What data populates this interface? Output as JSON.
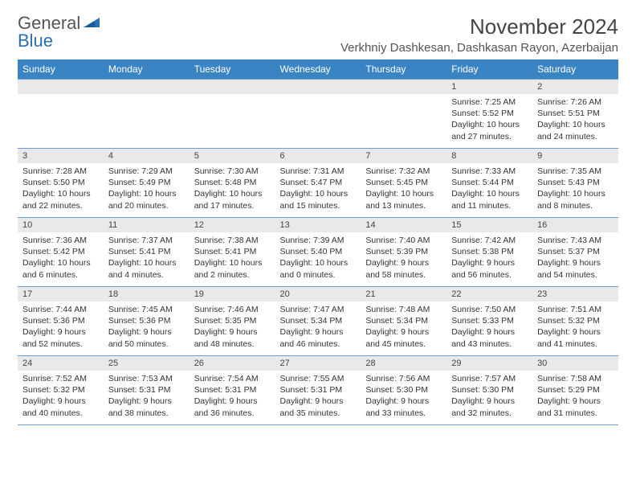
{
  "logo": {
    "text1": "General",
    "text2": "Blue"
  },
  "title": "November 2024",
  "location": "Verkhniy Dashkesan, Dashkasan Rayon, Azerbaijan",
  "colors": {
    "header_bg": "#3b84c4",
    "header_text": "#ffffff",
    "daynum_bg": "#e9e9e9",
    "border": "#6a9fd0",
    "logo_blue": "#2a6fb5",
    "title_color": "#444444",
    "body_text": "#333333"
  },
  "weekdays": [
    "Sunday",
    "Monday",
    "Tuesday",
    "Wednesday",
    "Thursday",
    "Friday",
    "Saturday"
  ],
  "weeks": [
    [
      null,
      null,
      null,
      null,
      null,
      {
        "n": "1",
        "sunrise": "7:25 AM",
        "sunset": "5:52 PM",
        "day_l1": "Daylight: 10 hours",
        "day_l2": "and 27 minutes."
      },
      {
        "n": "2",
        "sunrise": "7:26 AM",
        "sunset": "5:51 PM",
        "day_l1": "Daylight: 10 hours",
        "day_l2": "and 24 minutes."
      }
    ],
    [
      {
        "n": "3",
        "sunrise": "7:28 AM",
        "sunset": "5:50 PM",
        "day_l1": "Daylight: 10 hours",
        "day_l2": "and 22 minutes."
      },
      {
        "n": "4",
        "sunrise": "7:29 AM",
        "sunset": "5:49 PM",
        "day_l1": "Daylight: 10 hours",
        "day_l2": "and 20 minutes."
      },
      {
        "n": "5",
        "sunrise": "7:30 AM",
        "sunset": "5:48 PM",
        "day_l1": "Daylight: 10 hours",
        "day_l2": "and 17 minutes."
      },
      {
        "n": "6",
        "sunrise": "7:31 AM",
        "sunset": "5:47 PM",
        "day_l1": "Daylight: 10 hours",
        "day_l2": "and 15 minutes."
      },
      {
        "n": "7",
        "sunrise": "7:32 AM",
        "sunset": "5:45 PM",
        "day_l1": "Daylight: 10 hours",
        "day_l2": "and 13 minutes."
      },
      {
        "n": "8",
        "sunrise": "7:33 AM",
        "sunset": "5:44 PM",
        "day_l1": "Daylight: 10 hours",
        "day_l2": "and 11 minutes."
      },
      {
        "n": "9",
        "sunrise": "7:35 AM",
        "sunset": "5:43 PM",
        "day_l1": "Daylight: 10 hours",
        "day_l2": "and 8 minutes."
      }
    ],
    [
      {
        "n": "10",
        "sunrise": "7:36 AM",
        "sunset": "5:42 PM",
        "day_l1": "Daylight: 10 hours",
        "day_l2": "and 6 minutes."
      },
      {
        "n": "11",
        "sunrise": "7:37 AM",
        "sunset": "5:41 PM",
        "day_l1": "Daylight: 10 hours",
        "day_l2": "and 4 minutes."
      },
      {
        "n": "12",
        "sunrise": "7:38 AM",
        "sunset": "5:41 PM",
        "day_l1": "Daylight: 10 hours",
        "day_l2": "and 2 minutes."
      },
      {
        "n": "13",
        "sunrise": "7:39 AM",
        "sunset": "5:40 PM",
        "day_l1": "Daylight: 10 hours",
        "day_l2": "and 0 minutes."
      },
      {
        "n": "14",
        "sunrise": "7:40 AM",
        "sunset": "5:39 PM",
        "day_l1": "Daylight: 9 hours",
        "day_l2": "and 58 minutes."
      },
      {
        "n": "15",
        "sunrise": "7:42 AM",
        "sunset": "5:38 PM",
        "day_l1": "Daylight: 9 hours",
        "day_l2": "and 56 minutes."
      },
      {
        "n": "16",
        "sunrise": "7:43 AM",
        "sunset": "5:37 PM",
        "day_l1": "Daylight: 9 hours",
        "day_l2": "and 54 minutes."
      }
    ],
    [
      {
        "n": "17",
        "sunrise": "7:44 AM",
        "sunset": "5:36 PM",
        "day_l1": "Daylight: 9 hours",
        "day_l2": "and 52 minutes."
      },
      {
        "n": "18",
        "sunrise": "7:45 AM",
        "sunset": "5:36 PM",
        "day_l1": "Daylight: 9 hours",
        "day_l2": "and 50 minutes."
      },
      {
        "n": "19",
        "sunrise": "7:46 AM",
        "sunset": "5:35 PM",
        "day_l1": "Daylight: 9 hours",
        "day_l2": "and 48 minutes."
      },
      {
        "n": "20",
        "sunrise": "7:47 AM",
        "sunset": "5:34 PM",
        "day_l1": "Daylight: 9 hours",
        "day_l2": "and 46 minutes."
      },
      {
        "n": "21",
        "sunrise": "7:48 AM",
        "sunset": "5:34 PM",
        "day_l1": "Daylight: 9 hours",
        "day_l2": "and 45 minutes."
      },
      {
        "n": "22",
        "sunrise": "7:50 AM",
        "sunset": "5:33 PM",
        "day_l1": "Daylight: 9 hours",
        "day_l2": "and 43 minutes."
      },
      {
        "n": "23",
        "sunrise": "7:51 AM",
        "sunset": "5:32 PM",
        "day_l1": "Daylight: 9 hours",
        "day_l2": "and 41 minutes."
      }
    ],
    [
      {
        "n": "24",
        "sunrise": "7:52 AM",
        "sunset": "5:32 PM",
        "day_l1": "Daylight: 9 hours",
        "day_l2": "and 40 minutes."
      },
      {
        "n": "25",
        "sunrise": "7:53 AM",
        "sunset": "5:31 PM",
        "day_l1": "Daylight: 9 hours",
        "day_l2": "and 38 minutes."
      },
      {
        "n": "26",
        "sunrise": "7:54 AM",
        "sunset": "5:31 PM",
        "day_l1": "Daylight: 9 hours",
        "day_l2": "and 36 minutes."
      },
      {
        "n": "27",
        "sunrise": "7:55 AM",
        "sunset": "5:31 PM",
        "day_l1": "Daylight: 9 hours",
        "day_l2": "and 35 minutes."
      },
      {
        "n": "28",
        "sunrise": "7:56 AM",
        "sunset": "5:30 PM",
        "day_l1": "Daylight: 9 hours",
        "day_l2": "and 33 minutes."
      },
      {
        "n": "29",
        "sunrise": "7:57 AM",
        "sunset": "5:30 PM",
        "day_l1": "Daylight: 9 hours",
        "day_l2": "and 32 minutes."
      },
      {
        "n": "30",
        "sunrise": "7:58 AM",
        "sunset": "5:29 PM",
        "day_l1": "Daylight: 9 hours",
        "day_l2": "and 31 minutes."
      }
    ]
  ],
  "labels": {
    "sunrise": "Sunrise: ",
    "sunset": "Sunset: "
  }
}
